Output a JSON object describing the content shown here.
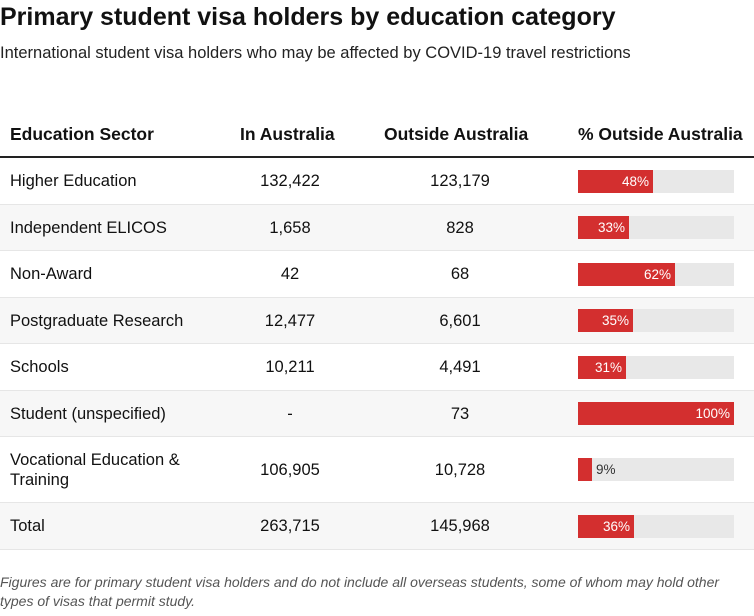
{
  "title": "Primary student visa holders by education category",
  "subtitle": "International student visa holders who may be affected by COVID-19 travel restrictions",
  "headers": [
    "Education Sector",
    "In Australia",
    "Outside Australia",
    "% Outside Australia"
  ],
  "footnote": "Figures are for primary student visa holders and do not include all overseas students, some of whom may hold other types of visas that permit study.",
  "colors": {
    "bar": "#d32f2f",
    "track": "#e8e8e8"
  },
  "chart_data": {
    "type": "table",
    "columns": [
      "Education Sector",
      "In Australia",
      "Outside Australia",
      "% Outside Australia"
    ],
    "rows": [
      {
        "sector": "Higher Education",
        "in_australia": "132,422",
        "outside_australia": "123,179",
        "pct": 48,
        "pct_label": "48%"
      },
      {
        "sector": "Independent ELICOS",
        "in_australia": "1,658",
        "outside_australia": "828",
        "pct": 33,
        "pct_label": "33%"
      },
      {
        "sector": "Non-Award",
        "in_australia": "42",
        "outside_australia": "68",
        "pct": 62,
        "pct_label": "62%"
      },
      {
        "sector": "Postgraduate Research",
        "in_australia": "12,477",
        "outside_australia": "6,601",
        "pct": 35,
        "pct_label": "35%"
      },
      {
        "sector": "Schools",
        "in_australia": "10,211",
        "outside_australia": "4,491",
        "pct": 31,
        "pct_label": "31%"
      },
      {
        "sector": "Student (unspecified)",
        "in_australia": "-",
        "outside_australia": "73",
        "pct": 100,
        "pct_label": "100%"
      },
      {
        "sector": "Vocational Education & Training",
        "in_australia": "106,905",
        "outside_australia": "10,728",
        "pct": 9,
        "pct_label": "9%"
      },
      {
        "sector": "Total",
        "in_australia": "263,715",
        "outside_australia": "145,968",
        "pct": 36,
        "pct_label": "36%"
      }
    ]
  }
}
